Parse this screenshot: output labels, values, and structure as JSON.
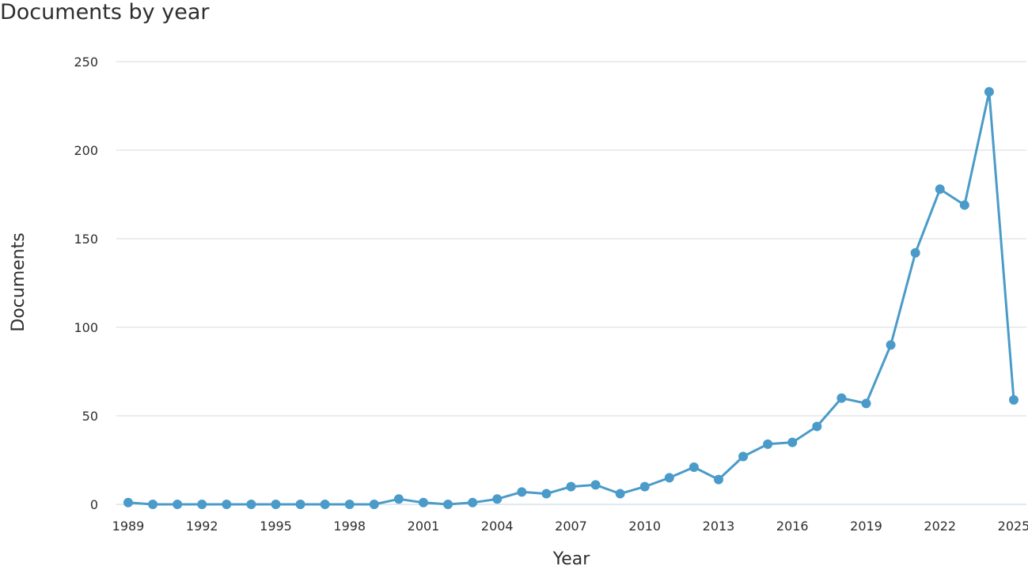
{
  "chart_data": {
    "type": "line",
    "title": "Documents by year",
    "xlabel": "Year",
    "ylabel": "Documents",
    "ylim": [
      0,
      250
    ],
    "yticks": [
      0,
      50,
      100,
      150,
      200,
      250
    ],
    "xticks": [
      1989,
      1992,
      1995,
      1998,
      2001,
      2004,
      2007,
      2010,
      2013,
      2016,
      2019,
      2022,
      2025
    ],
    "xlim": [
      1989,
      2025
    ],
    "grid": true,
    "line_color": "#4a9bc9",
    "grid_color": "#d4d9de",
    "x": [
      1989,
      1990,
      1991,
      1992,
      1993,
      1994,
      1995,
      1996,
      1997,
      1998,
      1999,
      2000,
      2001,
      2002,
      2003,
      2004,
      2005,
      2006,
      2007,
      2008,
      2009,
      2010,
      2011,
      2012,
      2013,
      2014,
      2015,
      2016,
      2017,
      2018,
      2019,
      2020,
      2021,
      2022,
      2023,
      2024,
      2025
    ],
    "values": [
      1,
      0,
      0,
      0,
      0,
      0,
      0,
      0,
      0,
      0,
      0,
      3,
      1,
      0,
      1,
      3,
      7,
      6,
      10,
      11,
      6,
      10,
      15,
      21,
      14,
      27,
      34,
      35,
      44,
      60,
      57,
      90,
      142,
      178,
      169,
      233,
      59
    ]
  }
}
